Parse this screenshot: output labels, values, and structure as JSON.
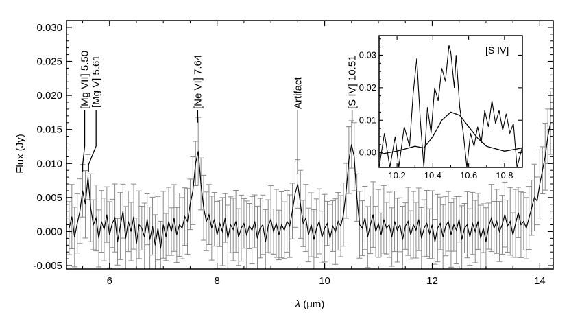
{
  "chart_data": [
    {
      "type": "line",
      "xlabel_symbol": "λ",
      "xlabel_unit": " (μm)",
      "ylabel": "Flux (Jy)",
      "xlim": [
        5.2,
        14.25
      ],
      "ylim": [
        -0.0055,
        0.031
      ],
      "x_ticks": [
        6,
        8,
        10,
        12,
        14
      ],
      "x_tick_labels": [
        "6",
        "8",
        "10",
        "12",
        "14"
      ],
      "y_ticks": [
        -0.005,
        0.0,
        0.005,
        0.01,
        0.015,
        0.02,
        0.025,
        0.03
      ],
      "y_tick_labels": [
        "-0.005",
        "0.000",
        "0.005",
        "0.010",
        "0.015",
        "0.020",
        "0.025",
        "0.030"
      ],
      "grid": false,
      "line_identifications": [
        {
          "label": "[Mg VII] 5.50",
          "x": 5.5
        },
        {
          "label": "[Mg V] 5.61",
          "x": 5.61
        },
        {
          "label": "[Ne VI] 7.64",
          "x": 7.64
        },
        {
          "label": "Artifact",
          "x": 9.5
        },
        {
          "label": "[S IV] 10.51",
          "x": 10.51
        }
      ],
      "series": [
        {
          "error_bars": true,
          "points": [
            [
              5.25,
              0.0005
            ],
            [
              5.3,
              0.0022
            ],
            [
              5.35,
              -0.0008
            ],
            [
              5.4,
              0.0012
            ],
            [
              5.45,
              0.003
            ],
            [
              5.5,
              0.006
            ],
            [
              5.55,
              0.004
            ],
            [
              5.6,
              0.008
            ],
            [
              5.65,
              0.0035
            ],
            [
              5.7,
              0.001
            ],
            [
              5.75,
              0.002
            ],
            [
              5.8,
              -0.001
            ],
            [
              5.85,
              0.0015
            ],
            [
              5.9,
              0.0003
            ],
            [
              5.95,
              0.0025
            ],
            [
              6.0,
              -0.0005
            ],
            [
              6.05,
              0.0012
            ],
            [
              6.1,
              0.002
            ],
            [
              6.15,
              -0.0015
            ],
            [
              6.2,
              0.0008
            ],
            [
              6.25,
              0.003
            ],
            [
              6.3,
              -0.001
            ],
            [
              6.35,
              0.0015
            ],
            [
              6.4,
              0.0
            ],
            [
              6.45,
              0.0022
            ],
            [
              6.5,
              -0.0018
            ],
            [
              6.55,
              0.001
            ],
            [
              6.6,
              0.0005
            ],
            [
              6.65,
              -0.0008
            ],
            [
              6.7,
              0.0018
            ],
            [
              6.75,
              -0.0012
            ],
            [
              6.8,
              0.0008
            ],
            [
              6.85,
              -0.002
            ],
            [
              6.9,
              0.0005
            ],
            [
              6.95,
              -0.0025
            ],
            [
              7.0,
              0.001
            ],
            [
              7.05,
              -0.0008
            ],
            [
              7.1,
              0.0015
            ],
            [
              7.15,
              0.0
            ],
            [
              7.2,
              0.002
            ],
            [
              7.25,
              -0.0005
            ],
            [
              7.3,
              0.001
            ],
            [
              7.35,
              0.0005
            ],
            [
              7.4,
              0.0022
            ],
            [
              7.45,
              0.0015
            ],
            [
              7.5,
              0.004
            ],
            [
              7.55,
              0.006
            ],
            [
              7.6,
              0.01
            ],
            [
              7.65,
              0.0118
            ],
            [
              7.7,
              0.007
            ],
            [
              7.75,
              0.0035
            ],
            [
              7.8,
              0.0015
            ],
            [
              7.85,
              0.0025
            ],
            [
              7.9,
              0.0005
            ],
            [
              7.95,
              0.0018
            ],
            [
              8.0,
              -0.0005
            ],
            [
              8.05,
              0.0012
            ],
            [
              8.1,
              0.0
            ],
            [
              8.15,
              0.002
            ],
            [
              8.2,
              -0.001
            ],
            [
              8.25,
              0.001
            ],
            [
              8.3,
              0.0003
            ],
            [
              8.35,
              0.0015
            ],
            [
              8.4,
              -0.0008
            ],
            [
              8.45,
              0.0005
            ],
            [
              8.5,
              0.0012
            ],
            [
              8.55,
              -0.0005
            ],
            [
              8.6,
              0.0008
            ],
            [
              8.65,
              0.0002
            ],
            [
              8.7,
              0.0015
            ],
            [
              8.75,
              -0.001
            ],
            [
              8.8,
              0.0005
            ],
            [
              8.85,
              0.001
            ],
            [
              8.9,
              -0.0015
            ],
            [
              8.95,
              0.0008
            ],
            [
              9.0,
              0.0018
            ],
            [
              9.05,
              0.0
            ],
            [
              9.1,
              0.0012
            ],
            [
              9.15,
              -0.0005
            ],
            [
              9.2,
              0.001
            ],
            [
              9.25,
              0.0002
            ],
            [
              9.3,
              0.0015
            ],
            [
              9.35,
              0.0008
            ],
            [
              9.4,
              0.003
            ],
            [
              9.45,
              0.0055
            ],
            [
              9.5,
              0.007
            ],
            [
              9.55,
              0.004
            ],
            [
              9.6,
              0.0012
            ],
            [
              9.65,
              0.002
            ],
            [
              9.7,
              -0.0005
            ],
            [
              9.75,
              0.001
            ],
            [
              9.8,
              -0.0012
            ],
            [
              9.85,
              0.0005
            ],
            [
              9.9,
              0.0015
            ],
            [
              9.95,
              -0.0008
            ],
            [
              10.0,
              0.0005
            ],
            [
              10.05,
              0.0012
            ],
            [
              10.1,
              -0.001
            ],
            [
              10.15,
              0.0008
            ],
            [
              10.2,
              0.0
            ],
            [
              10.25,
              0.0015
            ],
            [
              10.3,
              0.0008
            ],
            [
              10.35,
              0.0025
            ],
            [
              10.4,
              0.006
            ],
            [
              10.45,
              0.0105
            ],
            [
              10.5,
              0.0128
            ],
            [
              10.55,
              0.011
            ],
            [
              10.6,
              0.005
            ],
            [
              10.65,
              0.001
            ],
            [
              10.7,
              0.0005
            ],
            [
              10.75,
              0.002
            ],
            [
              10.8,
              -0.0008
            ],
            [
              10.85,
              0.001
            ],
            [
              10.9,
              0.0025
            ],
            [
              10.95,
              0.0
            ],
            [
              11.0,
              0.0012
            ],
            [
              11.05,
              -0.0005
            ],
            [
              11.1,
              0.0018
            ],
            [
              11.15,
              0.0005
            ],
            [
              11.2,
              0.001
            ],
            [
              11.25,
              -0.0008
            ],
            [
              11.3,
              0.0015
            ],
            [
              11.35,
              0.0002
            ],
            [
              11.4,
              0.001
            ],
            [
              11.45,
              -0.0012
            ],
            [
              11.5,
              0.0008
            ],
            [
              11.55,
              0.0015
            ],
            [
              11.6,
              -0.0005
            ],
            [
              11.65,
              0.001
            ],
            [
              11.7,
              0.0002
            ],
            [
              11.75,
              0.0018
            ],
            [
              11.8,
              -0.001
            ],
            [
              11.85,
              0.0005
            ],
            [
              11.9,
              0.0012
            ],
            [
              11.95,
              -0.0003
            ],
            [
              12.0,
              0.001
            ],
            [
              12.05,
              -0.0015
            ],
            [
              12.1,
              0.0005
            ],
            [
              12.15,
              0.0012
            ],
            [
              12.2,
              -0.0008
            ],
            [
              12.25,
              0.0008
            ],
            [
              12.3,
              0.0015
            ],
            [
              12.35,
              -0.0005
            ],
            [
              12.4,
              0.001
            ],
            [
              12.45,
              0.0002
            ],
            [
              12.5,
              0.0018
            ],
            [
              12.55,
              -0.0012
            ],
            [
              12.6,
              0.0005
            ],
            [
              12.65,
              0.001
            ],
            [
              12.7,
              -0.0008
            ],
            [
              12.75,
              0.0012
            ],
            [
              12.8,
              0.0
            ],
            [
              12.85,
              0.0015
            ],
            [
              12.9,
              -0.001
            ],
            [
              12.95,
              0.0005
            ],
            [
              13.0,
              -0.0015
            ],
            [
              13.05,
              0.0008
            ],
            [
              13.1,
              0.002
            ],
            [
              13.15,
              0.0005
            ],
            [
              13.2,
              0.0015
            ],
            [
              13.25,
              0.0
            ],
            [
              13.3,
              0.001
            ],
            [
              13.35,
              0.0025
            ],
            [
              13.4,
              0.0008
            ],
            [
              13.45,
              0.0015
            ],
            [
              13.5,
              -0.0005
            ],
            [
              13.55,
              0.0012
            ],
            [
              13.6,
              0.0028
            ],
            [
              13.65,
              0.001
            ],
            [
              13.7,
              0.0015
            ],
            [
              13.75,
              0.0005
            ],
            [
              13.8,
              0.002
            ],
            [
              13.85,
              0.0035
            ],
            [
              13.9,
              0.005
            ],
            [
              13.95,
              0.0045
            ],
            [
              14.0,
              0.007
            ],
            [
              14.05,
              0.009
            ],
            [
              14.1,
              0.011
            ],
            [
              14.15,
              0.014
            ],
            [
              14.2,
              0.016
            ]
          ]
        }
      ]
    },
    {
      "type": "line",
      "inset": true,
      "label": "[S IV]",
      "xlim": [
        10.1,
        10.9
      ],
      "ylim": [
        -0.0045,
        0.036
      ],
      "x_ticks": [
        10.2,
        10.4,
        10.6,
        10.8
      ],
      "x_tick_labels": [
        "10.2",
        "10.4",
        "10.6",
        "10.8"
      ],
      "y_ticks": [
        0.0,
        0.01,
        0.02,
        0.03
      ],
      "y_tick_labels": [
        "0.00",
        "0.01",
        "0.02",
        "0.03"
      ],
      "series": [
        {
          "points": [
            [
              10.1,
              -0.0045
            ],
            [
              10.13,
              0.006
            ],
            [
              10.16,
              -0.0045
            ],
            [
              10.19,
              0.005
            ],
            [
              10.21,
              -0.0045
            ],
            [
              10.24,
              0.008
            ],
            [
              10.27,
              0.002
            ],
            [
              10.29,
              0.018
            ],
            [
              10.31,
              0.029
            ],
            [
              10.33,
              0.01
            ],
            [
              10.35,
              -0.0045
            ],
            [
              10.37,
              0.014
            ],
            [
              10.39,
              0.006
            ],
            [
              10.41,
              0.02
            ],
            [
              10.43,
              0.016
            ],
            [
              10.45,
              0.026
            ],
            [
              10.47,
              0.022
            ],
            [
              10.49,
              0.033
            ],
            [
              10.5,
              0.031
            ],
            [
              10.52,
              0.02
            ],
            [
              10.53,
              0.03
            ],
            [
              10.55,
              0.014
            ],
            [
              10.57,
              0.006
            ],
            [
              10.59,
              -0.0045
            ],
            [
              10.61,
              0.006
            ],
            [
              10.63,
              0.002
            ],
            [
              10.65,
              0.008
            ],
            [
              10.67,
              0.003
            ],
            [
              10.69,
              0.013
            ],
            [
              10.71,
              0.008
            ],
            [
              10.73,
              0.016
            ],
            [
              10.75,
              0.009
            ],
            [
              10.77,
              0.013
            ],
            [
              10.79,
              0.007
            ],
            [
              10.81,
              0.012
            ],
            [
              10.83,
              0.006
            ],
            [
              10.85,
              0.009
            ],
            [
              10.87,
              -0.0045
            ],
            [
              10.9,
              0.002
            ]
          ]
        },
        {
          "points": [
            [
              10.1,
              -0.0005
            ],
            [
              10.2,
              0.0005
            ],
            [
              10.3,
              0.002
            ],
            [
              10.35,
              0.0015
            ],
            [
              10.4,
              0.005
            ],
            [
              10.45,
              0.01
            ],
            [
              10.5,
              0.0125
            ],
            [
              10.55,
              0.0115
            ],
            [
              10.6,
              0.008
            ],
            [
              10.65,
              0.0045
            ],
            [
              10.7,
              0.002
            ],
            [
              10.8,
              0.0005
            ],
            [
              10.9,
              0.0015
            ]
          ]
        }
      ]
    }
  ]
}
